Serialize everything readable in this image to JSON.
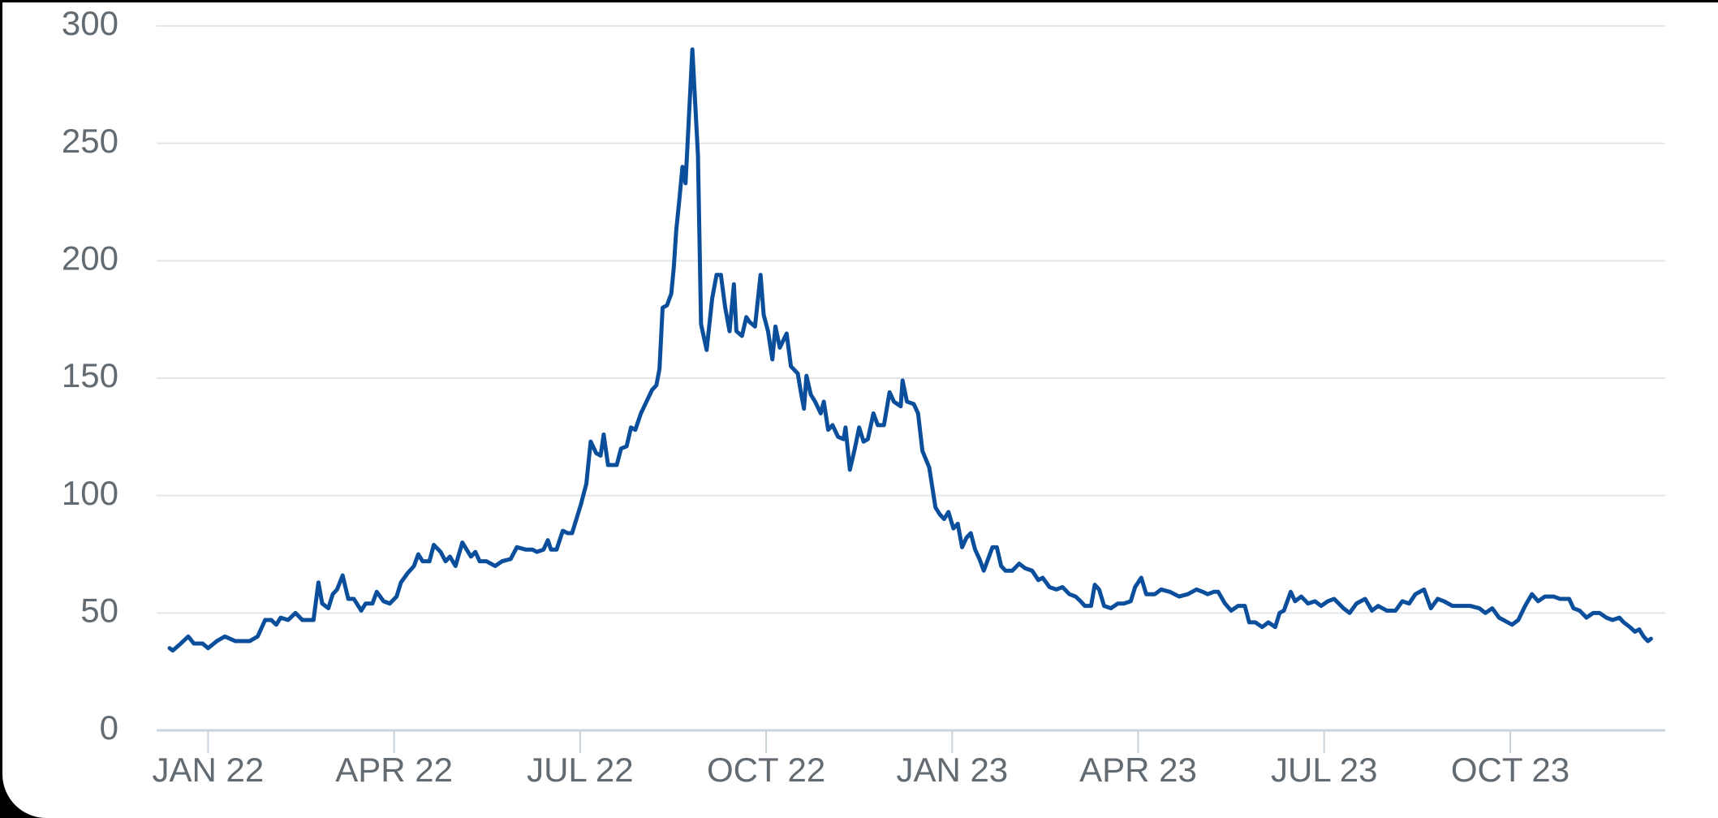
{
  "chart_data": {
    "type": "line",
    "color": "#0b4f9c",
    "grid": true,
    "xlim": [
      -0.83,
      23.5
    ],
    "xticks": [
      {
        "value": 0,
        "label": "JAN 22"
      },
      {
        "value": 3,
        "label": "APR 22"
      },
      {
        "value": 6,
        "label": "JUL 22"
      },
      {
        "value": 9,
        "label": "OCT 22"
      },
      {
        "value": 12,
        "label": "JAN 23"
      },
      {
        "value": 15,
        "label": "APR 23"
      },
      {
        "value": 18,
        "label": "JUL 23"
      },
      {
        "value": 21,
        "label": "OCT 23"
      }
    ],
    "ylim": [
      0,
      300
    ],
    "yticks": [
      0,
      50,
      100,
      150,
      200,
      250,
      300
    ],
    "x": [
      -0.62,
      -0.57,
      -0.44,
      -0.32,
      -0.23,
      -0.09,
      0,
      0.14,
      0.27,
      0.44,
      0.67,
      0.8,
      0.92,
      1.02,
      1.1,
      1.17,
      1.29,
      1.41,
      1.52,
      1.7,
      1.78,
      1.84,
      1.94,
      2.01,
      2.08,
      2.17,
      2.26,
      2.35,
      2.47,
      2.54,
      2.65,
      2.72,
      2.83,
      2.93,
      3.04,
      3.11,
      3.22,
      3.32,
      3.39,
      3.46,
      3.57,
      3.64,
      3.75,
      3.83,
      3.9,
      3.99,
      4.1,
      4.24,
      4.31,
      4.38,
      4.49,
      4.63,
      4.74,
      4.88,
      4.98,
      5.12,
      5.23,
      5.3,
      5.41,
      5.48,
      5.53,
      5.62,
      5.72,
      5.8,
      5.87,
      5.94,
      6.01,
      6.1,
      6.17,
      6.26,
      6.33,
      6.38,
      6.45,
      6.52,
      6.59,
      6.66,
      6.75,
      6.82,
      6.89,
      6.98,
      7.07,
      7.16,
      7.23,
      7.28,
      7.33,
      7.4,
      7.47,
      7.51,
      7.55,
      7.6,
      7.65,
      7.7,
      7.81,
      7.9,
      7.95,
      8.04,
      8.13,
      8.2,
      8.27,
      8.34,
      8.41,
      8.48,
      8.52,
      8.61,
      8.68,
      8.73,
      8.82,
      8.91,
      8.96,
      9.03,
      9.1,
      9.15,
      9.22,
      9.33,
      9.4,
      9.51,
      9.56,
      9.61,
      9.65,
      9.72,
      9.79,
      9.88,
      9.93,
      10.0,
      10.07,
      10.16,
      10.25,
      10.28,
      10.35,
      10.43,
      10.5,
      10.57,
      10.64,
      10.73,
      10.8,
      10.9,
      10.99,
      11.06,
      11.17,
      11.2,
      11.27,
      11.38,
      11.45,
      11.52,
      11.63,
      11.73,
      11.8,
      11.87,
      11.94,
      12.02,
      12.09,
      12.16,
      12.23,
      12.3,
      12.37,
      12.44,
      12.51,
      12.58,
      12.65,
      12.72,
      12.79,
      12.86,
      12.97,
      13.08,
      13.18,
      13.29,
      13.39,
      13.46,
      13.57,
      13.68,
      13.78,
      13.89,
      13.99,
      14.07,
      14.14,
      14.24,
      14.3,
      14.37,
      14.45,
      14.56,
      14.67,
      14.77,
      14.88,
      14.95,
      15.05,
      15.13,
      15.27,
      15.37,
      15.51,
      15.66,
      15.8,
      15.94,
      16.04,
      16.12,
      16.22,
      16.29,
      16.4,
      16.5,
      16.61,
      16.72,
      16.79,
      16.89,
      17.0,
      17.1,
      17.21,
      17.28,
      17.35,
      17.46,
      17.53,
      17.63,
      17.74,
      17.85,
      17.95,
      18.06,
      18.16,
      18.31,
      18.41,
      18.52,
      18.66,
      18.77,
      18.87,
      19.01,
      19.15,
      19.26,
      19.37,
      19.47,
      19.61,
      19.72,
      19.83,
      19.93,
      20.07,
      20.21,
      20.36,
      20.5,
      20.6,
      20.71,
      20.82,
      20.96,
      21.03,
      21.13,
      21.24,
      21.35,
      21.45,
      21.56,
      21.7,
      21.8,
      21.95,
      22.02,
      22.12,
      22.23,
      22.34,
      22.44,
      22.55,
      22.65,
      22.76,
      22.83,
      22.93,
      23.01,
      23.08,
      23.15,
      23.22,
      23.27
    ],
    "values": [
      35,
      34,
      37,
      40,
      37,
      37,
      35,
      38,
      40,
      38,
      38,
      40,
      47,
      47,
      45,
      48,
      47,
      50,
      47,
      47,
      63,
      54,
      52,
      58,
      60,
      66,
      56,
      56,
      51,
      54,
      54,
      59,
      55,
      54,
      57,
      63,
      67,
      70,
      75,
      72,
      72,
      79,
      76,
      72,
      74,
      70,
      80,
      74,
      76,
      72,
      72,
      70,
      72,
      73,
      78,
      77,
      77,
      76,
      77,
      81,
      77,
      77,
      85,
      84,
      84,
      90,
      96,
      105,
      123,
      118,
      117,
      126,
      113,
      113,
      113,
      120,
      121,
      129,
      128,
      135,
      140,
      145,
      147,
      154,
      180,
      181,
      186,
      197,
      213,
      226,
      240,
      233,
      290,
      245,
      173,
      162,
      184,
      194,
      194,
      180,
      170,
      190,
      170,
      168,
      176,
      174,
      172,
      194,
      177,
      170,
      158,
      172,
      163,
      169,
      155,
      152,
      144,
      137,
      151,
      143,
      140,
      135,
      140,
      128,
      130,
      125,
      124,
      129,
      111,
      120,
      129,
      123,
      124,
      135,
      130,
      130,
      144,
      140,
      138,
      149,
      140,
      139,
      135,
      119,
      112,
      95,
      92,
      90,
      93,
      86,
      88,
      78,
      82,
      84,
      77,
      73,
      68,
      73,
      78,
      78,
      70,
      68,
      68,
      71,
      69,
      68,
      64,
      65,
      61,
      60,
      61,
      58,
      57,
      55,
      53,
      53,
      62,
      60,
      53,
      52,
      54,
      54,
      55,
      61,
      65,
      58,
      58,
      60,
      59,
      57,
      58,
      60,
      59,
      58,
      59,
      59,
      54,
      51,
      53,
      53,
      46,
      46,
      44,
      46,
      44,
      50,
      51,
      59,
      55,
      57,
      54,
      55,
      53,
      55,
      56,
      52,
      50,
      54,
      56,
      51,
      53,
      51,
      51,
      55,
      54,
      58,
      60,
      52,
      56,
      55,
      53,
      53,
      53,
      52,
      50,
      52,
      48,
      46,
      45,
      47,
      53,
      58,
      55,
      57,
      57,
      56,
      56,
      52,
      51,
      48,
      50,
      50,
      48,
      47,
      48,
      46,
      44,
      42,
      43,
      40,
      38,
      39
    ]
  }
}
